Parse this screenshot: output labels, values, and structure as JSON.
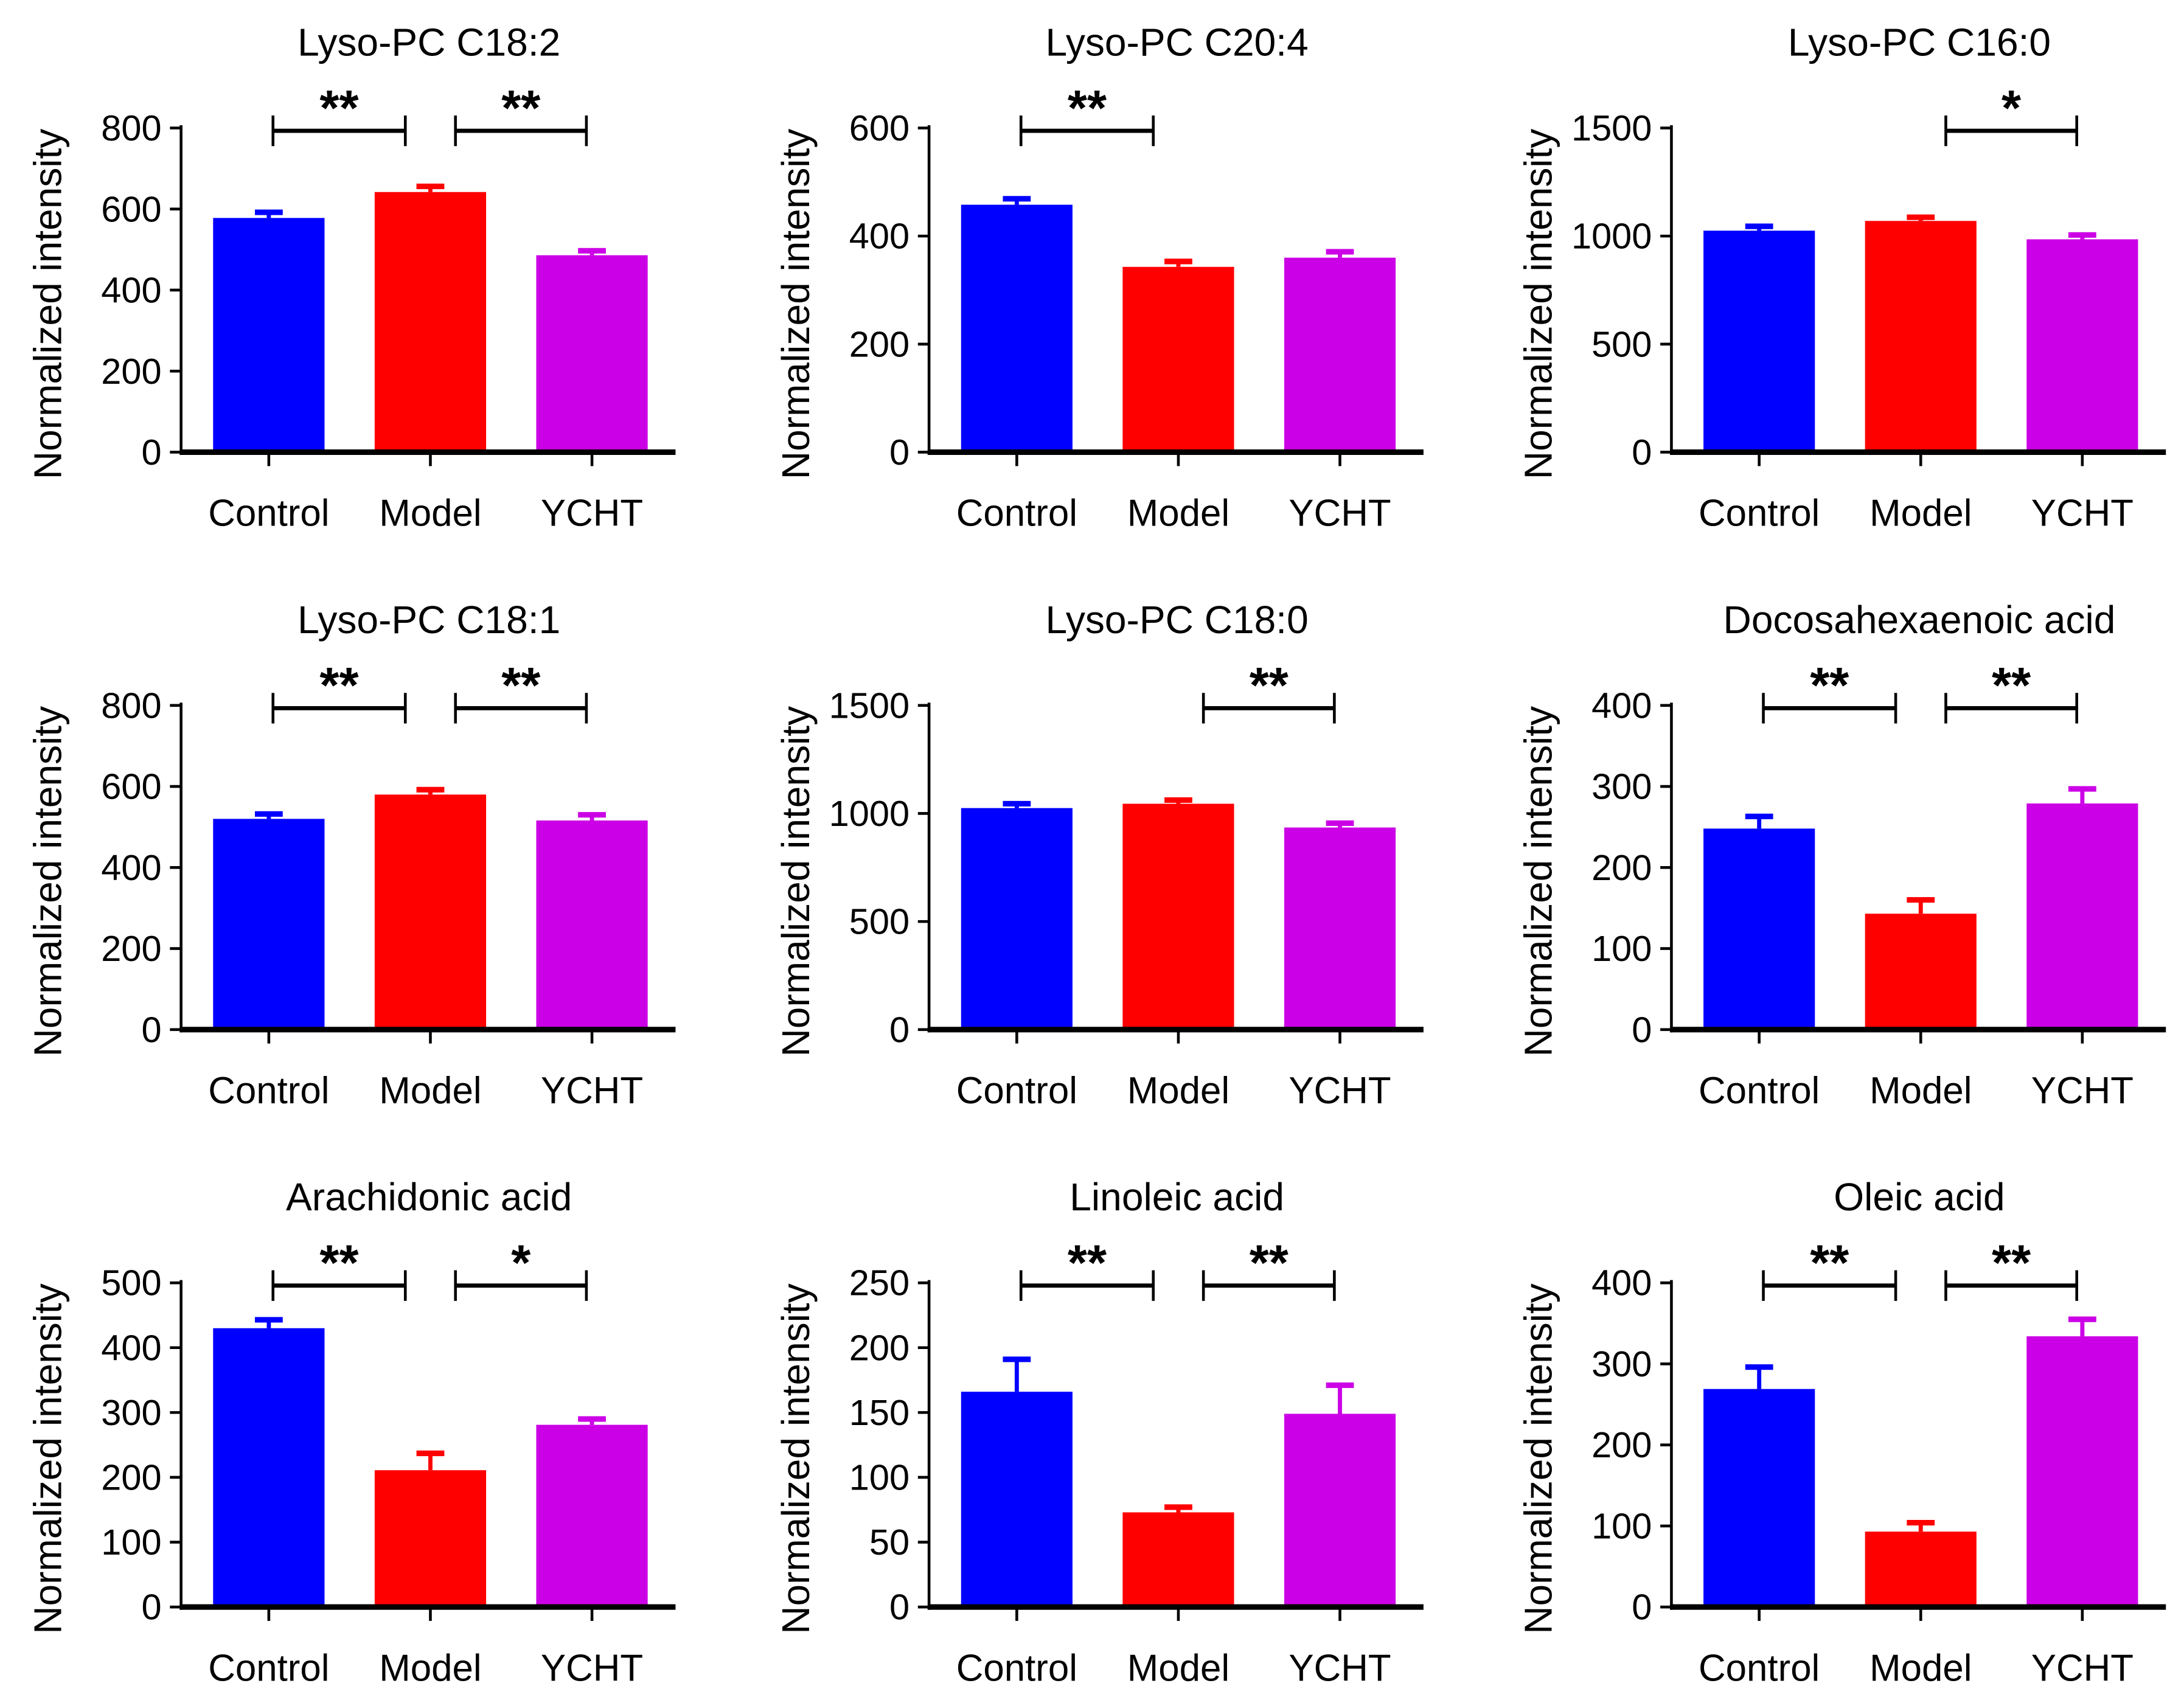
{
  "chart_data": [
    {
      "type": "bar",
      "title": "Lyso-PC C18:2",
      "ylabel": "Normalized intensity",
      "categories": [
        "Control",
        "Model",
        "YCHT"
      ],
      "values": [
        578,
        642,
        486
      ],
      "error_tops": [
        592,
        656,
        497
      ],
      "ylim": [
        0,
        800
      ],
      "yticks": [
        0,
        200,
        400,
        600,
        800
      ],
      "significance": [
        {
          "from": 0,
          "to": 1,
          "label": "**"
        },
        {
          "from": 1,
          "to": 2,
          "label": "**"
        }
      ]
    },
    {
      "type": "bar",
      "title": "Lyso-PC C20:4",
      "ylabel": "Normalized intensity",
      "categories": [
        "Control",
        "Model",
        "YCHT"
      ],
      "values": [
        458,
        343,
        360
      ],
      "error_tops": [
        469,
        353,
        371
      ],
      "ylim": [
        0,
        600
      ],
      "yticks": [
        0,
        200,
        400,
        600
      ],
      "significance": [
        {
          "from": 0,
          "to": 1,
          "label": "**"
        }
      ]
    },
    {
      "type": "bar",
      "title": "Lyso-PC C16:0",
      "ylabel": "Normalized intensity",
      "categories": [
        "Control",
        "Model",
        "YCHT"
      ],
      "values": [
        1025,
        1070,
        985
      ],
      "error_tops": [
        1045,
        1087,
        1005
      ],
      "ylim": [
        0,
        1500
      ],
      "yticks": [
        0,
        500,
        1000,
        1500
      ],
      "significance": [
        {
          "from": 1,
          "to": 2,
          "label": "*"
        }
      ]
    },
    {
      "type": "bar",
      "title": "Lyso-PC C18:1",
      "ylabel": "Normalized intensity",
      "categories": [
        "Control",
        "Model",
        "YCHT"
      ],
      "values": [
        520,
        580,
        516
      ],
      "error_tops": [
        532,
        592,
        530
      ],
      "ylim": [
        0,
        800
      ],
      "yticks": [
        0,
        200,
        400,
        600,
        800
      ],
      "significance": [
        {
          "from": 0,
          "to": 1,
          "label": "**"
        },
        {
          "from": 1,
          "to": 2,
          "label": "**"
        }
      ]
    },
    {
      "type": "bar",
      "title": "Lyso-PC C18:0",
      "ylabel": "Normalized intensity",
      "categories": [
        "Control",
        "Model",
        "YCHT"
      ],
      "values": [
        1025,
        1045,
        935
      ],
      "error_tops": [
        1045,
        1062,
        955
      ],
      "ylim": [
        0,
        1500
      ],
      "yticks": [
        0,
        500,
        1000,
        1500
      ],
      "significance": [
        {
          "from": 1,
          "to": 2,
          "label": "**"
        }
      ]
    },
    {
      "type": "bar",
      "title": "Docosahexaenoic acid",
      "ylabel": "Normalized intensity",
      "categories": [
        "Control",
        "Model",
        "YCHT"
      ],
      "values": [
        248,
        143,
        279
      ],
      "error_tops": [
        263,
        160,
        297
      ],
      "ylim": [
        0,
        400
      ],
      "yticks": [
        0,
        100,
        200,
        300,
        400
      ],
      "significance": [
        {
          "from": 0,
          "to": 1,
          "label": "**"
        },
        {
          "from": 1,
          "to": 2,
          "label": "**"
        }
      ]
    },
    {
      "type": "bar",
      "title": "Arachidonic acid",
      "ylabel": "Normalized intensity",
      "categories": [
        "Control",
        "Model",
        "YCHT"
      ],
      "values": [
        430,
        211,
        281
      ],
      "error_tops": [
        443,
        237,
        290
      ],
      "ylim": [
        0,
        500
      ],
      "yticks": [
        0,
        100,
        200,
        300,
        400,
        500
      ],
      "significance": [
        {
          "from": 0,
          "to": 1,
          "label": "**"
        },
        {
          "from": 1,
          "to": 2,
          "label": "*"
        }
      ]
    },
    {
      "type": "bar",
      "title": "Linoleic acid",
      "ylabel": "Normalized intensity",
      "categories": [
        "Control",
        "Model",
        "YCHT"
      ],
      "values": [
        166,
        73,
        149
      ],
      "error_tops": [
        191,
        77,
        171
      ],
      "ylim": [
        0,
        250
      ],
      "yticks": [
        0,
        50,
        100,
        150,
        200,
        250
      ],
      "significance": [
        {
          "from": 0,
          "to": 1,
          "label": "**"
        },
        {
          "from": 1,
          "to": 2,
          "label": "**"
        }
      ]
    },
    {
      "type": "bar",
      "title": "Oleic acid",
      "ylabel": "Normalized intensity",
      "categories": [
        "Control",
        "Model",
        "YCHT"
      ],
      "values": [
        269,
        93,
        334
      ],
      "error_tops": [
        296,
        104,
        355
      ],
      "ylim": [
        0,
        400
      ],
      "yticks": [
        0,
        100,
        200,
        300,
        400
      ],
      "significance": [
        {
          "from": 0,
          "to": 1,
          "label": "**"
        },
        {
          "from": 1,
          "to": 2,
          "label": "**"
        }
      ]
    }
  ],
  "colors": [
    "#0000ff",
    "#ff0000",
    "#cc00e6"
  ]
}
